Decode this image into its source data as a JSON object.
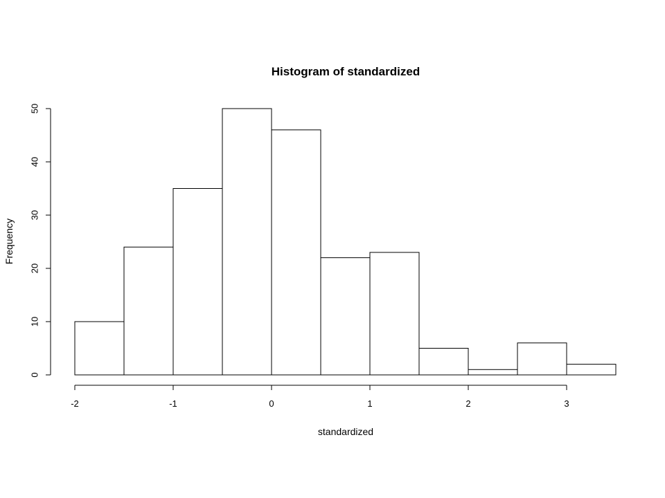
{
  "chart_data": {
    "type": "bar",
    "title": "Histogram of standardized",
    "xlabel": "standardized",
    "ylabel": "Frequency",
    "bins": [
      {
        "start": -2.0,
        "end": -1.5,
        "count": 10
      },
      {
        "start": -1.5,
        "end": -1.0,
        "count": 24
      },
      {
        "start": -1.0,
        "end": -0.5,
        "count": 35
      },
      {
        "start": -0.5,
        "end": 0.0,
        "count": 50
      },
      {
        "start": 0.0,
        "end": 0.5,
        "count": 46
      },
      {
        "start": 0.5,
        "end": 1.0,
        "count": 22
      },
      {
        "start": 1.0,
        "end": 1.5,
        "count": 23
      },
      {
        "start": 1.5,
        "end": 2.0,
        "count": 5
      },
      {
        "start": 2.0,
        "end": 2.5,
        "count": 1
      },
      {
        "start": 2.5,
        "end": 3.0,
        "count": 6
      },
      {
        "start": 3.0,
        "end": 3.5,
        "count": 2
      }
    ],
    "xticks": [
      -2,
      -1,
      0,
      1,
      2,
      3
    ],
    "yticks": [
      0,
      10,
      20,
      30,
      40,
      50
    ],
    "xlim": [
      -2,
      3.5
    ],
    "ylim": [
      0,
      50
    ],
    "grid": false,
    "legend": "none"
  }
}
